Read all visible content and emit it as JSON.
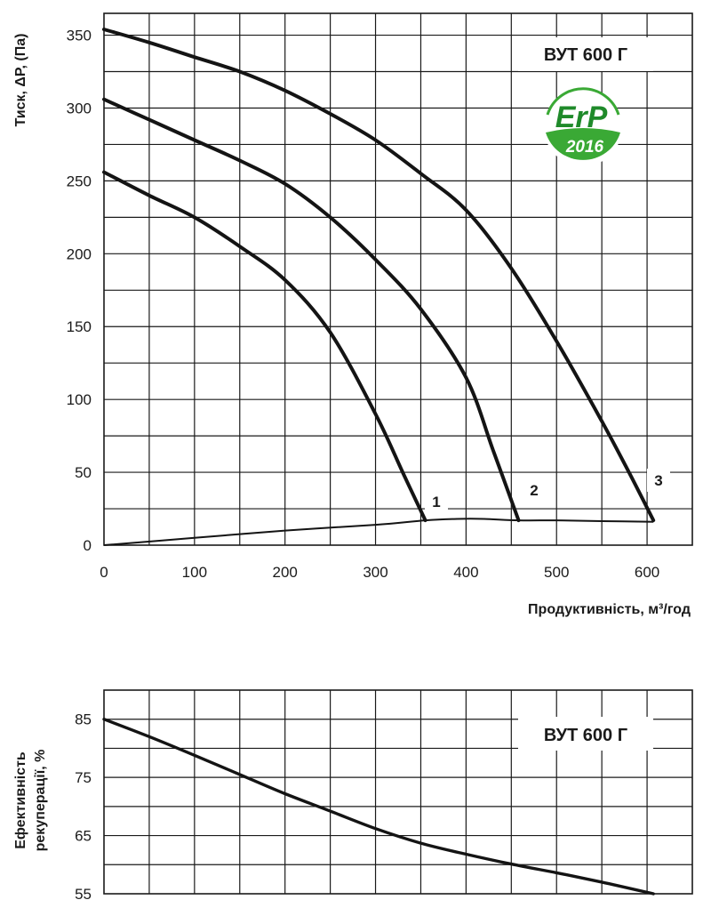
{
  "colors": {
    "ink": "#1a1a1a",
    "erp_green": "#3aa935",
    "erp_dark_green": "#1f8a2a"
  },
  "chart_data": [
    {
      "type": "line",
      "title": "ВУТ 600 Г",
      "xlabel": "Продуктивність, м³/год",
      "ylabel": "Тиск, ΔP, (Па)",
      "xlim": [
        0,
        650
      ],
      "ylim": [
        0,
        365
      ],
      "x_ticks": [
        "0",
        "100",
        "200",
        "300",
        "400",
        "500",
        "600"
      ],
      "y_ticks": [
        "0",
        "50",
        "100",
        "150",
        "200",
        "250",
        "300",
        "350"
      ],
      "grid": true,
      "badge": {
        "icon": "erp-2016-badge",
        "text_top": "ErP",
        "text_bottom": "2016"
      },
      "series": [
        {
          "name": "1",
          "x": [
            0,
            50,
            100,
            150,
            200,
            250,
            300,
            330,
            355
          ],
          "y": [
            256,
            240,
            225,
            205,
            182,
            146,
            90,
            50,
            17
          ]
        },
        {
          "name": "2",
          "x": [
            0,
            50,
            100,
            150,
            200,
            250,
            300,
            350,
            400,
            430,
            458
          ],
          "y": [
            306,
            292,
            278,
            264,
            248,
            225,
            196,
            162,
            115,
            65,
            17
          ]
        },
        {
          "name": "3",
          "x": [
            0,
            50,
            100,
            150,
            200,
            250,
            300,
            350,
            400,
            450,
            500,
            550,
            580,
            607
          ],
          "y": [
            354,
            345,
            335,
            325,
            312,
            296,
            278,
            255,
            230,
            190,
            140,
            85,
            50,
            17
          ]
        },
        {
          "name": "",
          "x": [
            0,
            100,
            200,
            300,
            355,
            390,
            420,
            458,
            500,
            550,
            607
          ],
          "y": [
            0,
            5,
            10,
            14,
            17,
            18,
            18,
            17,
            17,
            16.5,
            16
          ]
        }
      ]
    },
    {
      "type": "line",
      "title": "ВУТ 600 Г",
      "ylabel": "Ефективність рекуперації, %",
      "xlim": [
        0,
        650
      ],
      "ylim": [
        55,
        90
      ],
      "y_ticks": [
        "55",
        "65",
        "75",
        "85"
      ],
      "grid": true,
      "series": [
        {
          "name": "",
          "x": [
            0,
            50,
            100,
            150,
            200,
            250,
            300,
            350,
            400,
            450,
            500,
            550,
            607
          ],
          "y": [
            85,
            82,
            78.8,
            75.5,
            72.2,
            69.2,
            66.2,
            63.7,
            61.8,
            60.1,
            58.6,
            57,
            55
          ]
        }
      ]
    }
  ]
}
